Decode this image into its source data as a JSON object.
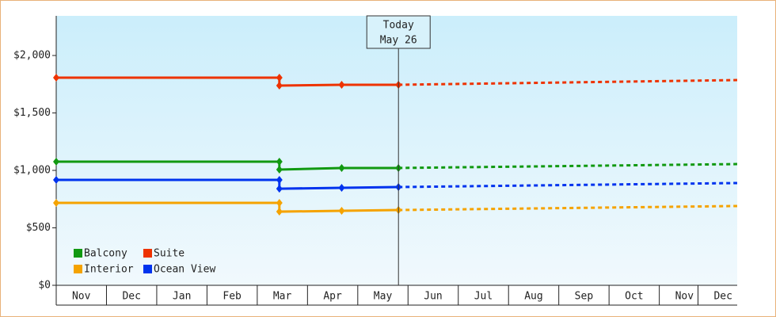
{
  "chart_data": {
    "type": "line",
    "xlim": [
      0,
      13.55
    ],
    "xticks": [
      {
        "value": 0.5,
        "label": "Nov"
      },
      {
        "value": 1.5,
        "label": "Dec"
      },
      {
        "value": 2.5,
        "label": "Jan"
      },
      {
        "value": 3.5,
        "label": "Feb"
      },
      {
        "value": 4.5,
        "label": "Mar"
      },
      {
        "value": 5.5,
        "label": "Apr"
      },
      {
        "value": 6.5,
        "label": "May"
      },
      {
        "value": 7.5,
        "label": "Jun"
      },
      {
        "value": 8.5,
        "label": "Jul"
      },
      {
        "value": 9.5,
        "label": "Aug"
      },
      {
        "value": 10.5,
        "label": "Sep"
      },
      {
        "value": 11.5,
        "label": "Oct"
      },
      {
        "value": 12.5,
        "label": "Nov"
      },
      {
        "value": 13.27,
        "label": "Dec"
      }
    ],
    "ylim": [
      0,
      2345
    ],
    "yticks": [
      {
        "value": 0,
        "label": "$0"
      },
      {
        "value": 500,
        "label": "$500"
      },
      {
        "value": 1000,
        "label": "$1,000"
      },
      {
        "value": 1500,
        "label": "$1,500"
      },
      {
        "value": 2000,
        "label": "$2,000"
      }
    ],
    "legend": "lower left",
    "annotation": {
      "x": 6.81,
      "lines": [
        "Today",
        "May 26"
      ]
    },
    "series": [
      {
        "name": "Balcony",
        "color": "#119911",
        "x": [
          0,
          4.44,
          4.44,
          5.68,
          6.81
        ],
        "values": [
          1076,
          1076,
          1007,
          1021,
          1021
        ],
        "projection": {
          "x": [
            6.81,
            13.55
          ],
          "values": [
            1021,
            1055
          ]
        }
      },
      {
        "name": "Suite",
        "color": "#ee3300",
        "x": [
          0,
          4.44,
          4.44,
          5.68,
          6.81
        ],
        "values": [
          1807,
          1807,
          1738,
          1745,
          1745
        ],
        "projection": {
          "x": [
            6.81,
            13.55
          ],
          "values": [
            1745,
            1786
          ]
        }
      },
      {
        "name": "Interior",
        "color": "#f5a300",
        "x": [
          0,
          4.44,
          4.44,
          5.68,
          6.81
        ],
        "values": [
          717,
          717,
          641,
          648,
          655
        ],
        "projection": {
          "x": [
            6.81,
            13.55
          ],
          "values": [
            655,
            690
          ]
        }
      },
      {
        "name": "Ocean View",
        "color": "#0033ee",
        "x": [
          0,
          4.44,
          4.44,
          5.68,
          6.81
        ],
        "values": [
          917,
          917,
          841,
          848,
          855
        ],
        "projection": {
          "x": [
            6.81,
            13.55
          ],
          "values": [
            855,
            890
          ]
        }
      }
    ]
  }
}
